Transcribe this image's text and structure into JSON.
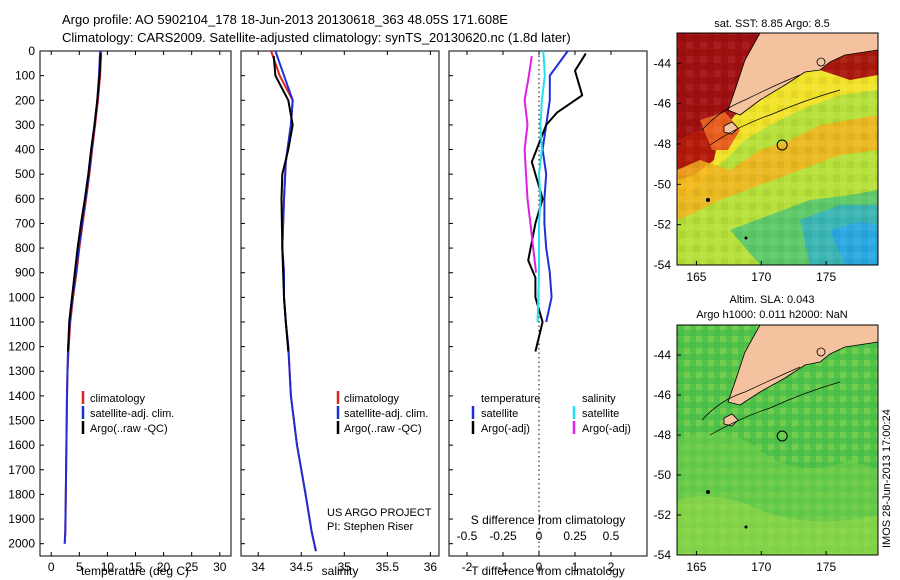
{
  "header": {
    "line1": "Argo profile: AO 5902104_178 18-Jun-2013 20130618_363 48.05S 171.608E",
    "line2": "Climatology: CARS2009. Satellite-adjusted climatology: synTS_20130620.nc (1.8d later)"
  },
  "colors": {
    "climatology": "#dd2222",
    "satellite": "#1f2fd8",
    "argo": "#000000",
    "sal_satellite": "#22e0f0",
    "sal_argo": "#e020e0"
  },
  "chart_data": [
    {
      "id": "temperature",
      "type": "line",
      "xlabel": "temperature (deg C)",
      "ylabel": "",
      "xlim": [
        -2,
        32
      ],
      "ylim": [
        2050,
        0
      ],
      "xticks": [
        0,
        5,
        10,
        15,
        20,
        25,
        30
      ],
      "yticks": [
        0,
        100,
        200,
        300,
        400,
        500,
        600,
        700,
        800,
        900,
        1000,
        1100,
        1200,
        1300,
        1400,
        1500,
        1600,
        1700,
        1800,
        1900,
        2000
      ],
      "legend": [
        "climatology",
        "satellite-adj. clim.",
        "Argo(..raw -QC)"
      ],
      "series": [
        {
          "name": "climatology",
          "x": [
            8.9,
            8.7,
            8.3,
            7.8,
            7.3,
            6.8,
            6.2,
            5.6,
            5.0,
            4.5,
            3.9,
            3.4,
            3.1,
            2.9,
            2.8,
            2.7,
            2.6,
            2.5,
            2.4
          ],
          "y": [
            0,
            100,
            200,
            300,
            400,
            500,
            600,
            700,
            800,
            900,
            1000,
            1100,
            1200,
            1300,
            1400,
            1600,
            1800,
            1950,
            2000
          ]
        },
        {
          "name": "satellite-adj. clim.",
          "x": [
            8.7,
            8.5,
            8.2,
            7.7,
            7.2,
            6.7,
            6.1,
            5.5,
            4.9,
            4.4,
            3.8,
            3.3,
            3.0,
            2.9,
            2.8,
            2.7,
            2.6,
            2.5,
            2.4
          ],
          "y": [
            0,
            100,
            200,
            300,
            400,
            500,
            600,
            700,
            800,
            900,
            1000,
            1100,
            1200,
            1300,
            1400,
            1600,
            1800,
            1950,
            2000
          ]
        },
        {
          "name": "Argo(..raw -QC)",
          "x": [
            8.8,
            8.6,
            8.2,
            7.7,
            7.1,
            6.6,
            6.0,
            5.3,
            4.7,
            4.2,
            3.7,
            3.2,
            3.0
          ],
          "y": [
            10,
            100,
            200,
            300,
            400,
            500,
            600,
            700,
            800,
            900,
            1000,
            1100,
            1220
          ]
        }
      ]
    },
    {
      "id": "salinity",
      "type": "line",
      "xlabel": "salinity",
      "xlim": [
        33.8,
        36.1
      ],
      "ylim": [
        2050,
        0
      ],
      "xticks": [
        34,
        34.5,
        35,
        35.5,
        36
      ],
      "legend": [
        "climatology",
        "satellite-adj. clim.",
        "Argo(..raw -QC)"
      ],
      "note": [
        "US ARGO PROJECT",
        "PI: Stephen Riser"
      ],
      "series": [
        {
          "name": "climatology",
          "x": [
            34.15,
            34.25,
            34.4,
            34.38,
            34.32,
            34.3,
            34.28,
            34.3,
            34.3,
            34.32,
            34.35,
            34.38,
            34.45,
            34.55,
            34.62,
            34.67
          ],
          "y": [
            0,
            100,
            200,
            300,
            450,
            600,
            800,
            900,
            1000,
            1100,
            1200,
            1400,
            1600,
            1800,
            1950,
            2030
          ]
        },
        {
          "name": "satellite-adj. clim.",
          "x": [
            34.2,
            34.3,
            34.4,
            34.38,
            34.32,
            34.3,
            34.28,
            34.3,
            34.3,
            34.32,
            34.35,
            34.38,
            34.45,
            34.55,
            34.62,
            34.67
          ],
          "y": [
            0,
            100,
            200,
            300,
            450,
            600,
            800,
            900,
            1000,
            1100,
            1200,
            1400,
            1600,
            1800,
            1950,
            2030
          ]
        },
        {
          "name": "Argo(..raw -QC)",
          "x": [
            34.18,
            34.2,
            34.35,
            34.4,
            34.35,
            34.28,
            34.27,
            34.28,
            34.3,
            34.32,
            34.35
          ],
          "y": [
            20,
            100,
            200,
            300,
            400,
            500,
            600,
            800,
            1000,
            1100,
            1220
          ]
        }
      ]
    },
    {
      "id": "difference",
      "type": "line",
      "xlabel": "T difference from climatology",
      "xlabel_top": "S difference from climatology",
      "xlim": [
        -2.5,
        3
      ],
      "ylim": [
        2050,
        0
      ],
      "xticks": [
        -2,
        -1,
        0,
        1,
        2
      ],
      "xticks_top": [
        "-0.5",
        "-0.25",
        "0",
        "0.25",
        "0.5"
      ],
      "legend_left": {
        "header": "temperature",
        "items": [
          "satellite",
          "Argo(-adj)"
        ]
      },
      "legend_right": {
        "header": "salinity",
        "items": [
          "satellite",
          "Argo(-adj)"
        ]
      },
      "series": [
        {
          "name": "temperature satellite",
          "x": [
            0.8,
            0.3,
            0.3,
            0.2,
            0.1,
            0.2,
            0.15,
            0.15,
            0.2,
            0.3,
            0.35,
            0.2
          ],
          "y": [
            0,
            100,
            200,
            300,
            400,
            500,
            600,
            700,
            800,
            900,
            1000,
            1100
          ]
        },
        {
          "name": "temperature Argo(-adj)",
          "x": [
            1.3,
            1.0,
            1.2,
            0.5,
            0.2,
            -0.2,
            0.1,
            -0.1,
            -0.3,
            -0.1,
            -0.1,
            0.1,
            -0.1
          ],
          "y": [
            10,
            80,
            180,
            250,
            300,
            450,
            600,
            700,
            850,
            920,
            1000,
            1100,
            1220
          ]
        },
        {
          "name": "salinity satellite",
          "x": [
            0.03,
            0.04,
            0.02,
            0.01,
            0.02,
            0.0,
            0.01,
            0.0,
            0.0,
            -0.01
          ],
          "y": [
            0,
            100,
            200,
            300,
            400,
            500,
            600,
            700,
            900,
            1100
          ]
        },
        {
          "name": "salinity Argo(-adj)",
          "x": [
            -0.05,
            -0.07,
            -0.1,
            -0.08,
            -0.1,
            -0.09,
            -0.08,
            -0.06,
            -0.04,
            -0.02
          ],
          "y": [
            20,
            100,
            200,
            300,
            400,
            500,
            600,
            700,
            800,
            900
          ]
        }
      ]
    },
    {
      "id": "map-sst",
      "type": "heatmap",
      "title": "sat. SST: 8.85 Argo: 8.5",
      "xlim": [
        163.5,
        179
      ],
      "ylim": [
        -54,
        -42.5
      ],
      "xticks": [
        165,
        170,
        175
      ],
      "yticks": [
        -44,
        -46,
        -48,
        -50,
        -52,
        -54
      ],
      "marker": {
        "lon": 171.608,
        "lat": -48.05
      }
    },
    {
      "id": "map-sla",
      "type": "heatmap",
      "title_line1": "Altim. SLA: 0.043",
      "title_line2": "Argo h1000: 0.011 h2000: NaN",
      "xlim": [
        163.5,
        179
      ],
      "ylim": [
        -54,
        -42.5
      ],
      "xticks": [
        165,
        170,
        175
      ],
      "yticks": [
        -44,
        -46,
        -48,
        -50,
        -52,
        -54
      ],
      "marker": {
        "lon": 171.608,
        "lat": -48.05
      }
    }
  ],
  "side_label": "IMOS 28-Jun-2013 17:00:24"
}
